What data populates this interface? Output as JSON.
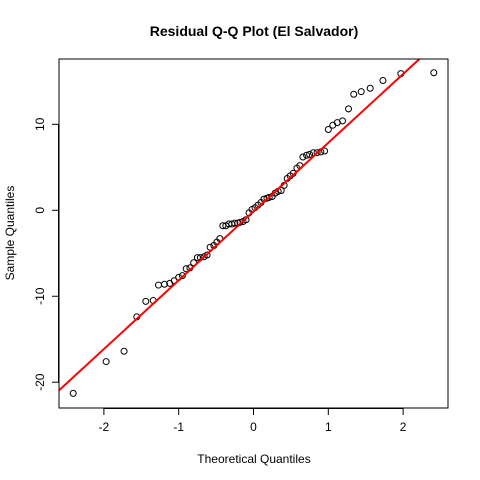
{
  "chart_data": {
    "type": "scatter",
    "title": "Residual Q-Q Plot (El Salvador)",
    "xlabel": "Theoretical Quantiles",
    "ylabel": "Sample Quantiles",
    "xlim": [
      -2.6,
      2.6
    ],
    "ylim": [
      -23,
      17.6
    ],
    "xticks": [
      -2,
      -1,
      0,
      1,
      2
    ],
    "yticks": [
      -20,
      -10,
      0,
      10
    ],
    "grid": false,
    "legend": "none",
    "colors": {
      "points": "#000000",
      "line": "#ff0000"
    },
    "reference_line": {
      "intercept": -0.15,
      "slope": 8.0
    },
    "series": [
      {
        "x": [
          -2.41,
          -1.97,
          -1.73,
          -1.56,
          -1.44,
          -1.34,
          -1.27,
          -1.19,
          -1.12,
          -1.06,
          -1.0,
          -0.95,
          -0.9,
          -0.85,
          -0.8,
          -0.75,
          -0.71,
          -0.66,
          -0.62,
          -0.58,
          -0.53,
          -0.49,
          -0.45,
          -0.41,
          -0.37,
          -0.33,
          -0.29,
          -0.25,
          -0.21,
          -0.18,
          -0.14,
          -0.1,
          -0.06,
          -0.02,
          0.02,
          0.06,
          0.1,
          0.14,
          0.18,
          0.21,
          0.25,
          0.29,
          0.33,
          0.37,
          0.41,
          0.45,
          0.49,
          0.53,
          0.58,
          0.62,
          0.66,
          0.71,
          0.75,
          0.8,
          0.85,
          0.9,
          0.95,
          1.0,
          1.06,
          1.12,
          1.19,
          1.27,
          1.34,
          1.44,
          1.56,
          1.73,
          1.97,
          2.41
        ],
        "y": [
          -21.3,
          -17.6,
          -16.4,
          -12.4,
          -10.6,
          -10.5,
          -8.7,
          -8.6,
          -8.5,
          -8.2,
          -7.8,
          -7.6,
          -6.8,
          -6.7,
          -6.1,
          -5.5,
          -5.5,
          -5.4,
          -5.2,
          -4.3,
          -4.1,
          -3.7,
          -3.3,
          -1.8,
          -1.8,
          -1.6,
          -1.6,
          -1.5,
          -1.5,
          -1.4,
          -1.3,
          -1.1,
          -0.3,
          0.1,
          0.3,
          0.6,
          0.9,
          1.3,
          1.4,
          1.5,
          1.6,
          2.0,
          2.2,
          2.3,
          2.9,
          3.7,
          4.0,
          4.3,
          4.9,
          5.2,
          6.2,
          6.4,
          6.5,
          6.7,
          6.7,
          6.8,
          6.9,
          9.4,
          9.9,
          10.2,
          10.4,
          11.8,
          13.5,
          13.8,
          14.2,
          15.1,
          15.9,
          16.0
        ]
      }
    ]
  }
}
